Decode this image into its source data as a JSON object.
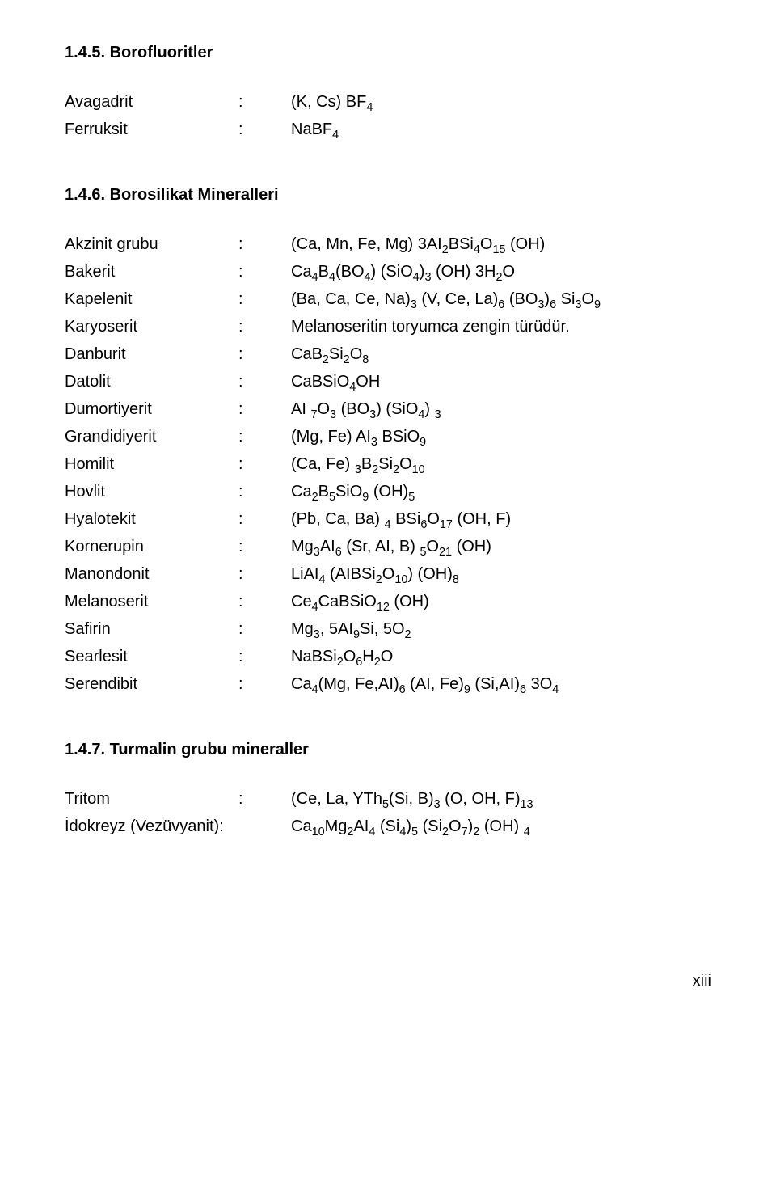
{
  "sections": [
    {
      "heading": "1.4.5. Borofluoritler",
      "rows": [
        {
          "name": "Avagadrit",
          "formula": "(K, Cs) BF<sub>4</sub>"
        },
        {
          "name": "Ferruksit",
          "formula": "NaBF<sub>4</sub>"
        }
      ]
    },
    {
      "heading": "1.4.6. Borosilikat Mineralleri",
      "rows": [
        {
          "name": "Akzinit grubu",
          "formula": "(Ca, Mn, Fe, Mg) 3AI<sub>2</sub>BSi<sub>4</sub>O<sub>15</sub> (OH)"
        },
        {
          "name": "Bakerit",
          "formula": "Ca<sub>4</sub>B<sub>4</sub>(BO<sub>4</sub>) (SiO<sub>4</sub>)<sub>3</sub> (OH) 3H<sub>2</sub>O"
        },
        {
          "name": "Kapelenit",
          "formula": "(Ba, Ca, Ce, Na)<sub>3</sub> (V, Ce, La)<sub>6</sub> (BO<sub>3</sub>)<sub>6</sub> Si<sub>3</sub>O<sub>9</sub>"
        },
        {
          "name": "Karyoserit",
          "formula": "Melanoseritin toryumca zengin türüdür."
        },
        {
          "name": "Danburit",
          "formula": "CaB<sub>2</sub>Si<sub>2</sub>O<sub>8</sub>"
        },
        {
          "name": "Datolit",
          "formula": "CaBSiO<sub>4</sub>OH"
        },
        {
          "name": "Dumortiyerit",
          "formula": "AI <sub>7</sub>O<sub>3</sub> (BO<sub>3</sub>) (SiO<sub>4</sub>) <sub>3</sub>"
        },
        {
          "name": "Grandidiyerit",
          "formula": "(Mg, Fe) AI<sub>3</sub> BSiO<sub>9</sub>"
        },
        {
          "name": "Homilit",
          "formula": "(Ca, Fe) <sub>3</sub>B<sub>2</sub>Si<sub>2</sub>O<sub>10</sub>"
        },
        {
          "name": "Hovlit",
          "formula": "Ca<sub>2</sub>B<sub>5</sub>SiO<sub>9</sub> (OH)<sub>5</sub>"
        },
        {
          "name": "Hyalotekit",
          "formula": "(Pb, Ca, Ba) <sub>4</sub> BSi<sub>6</sub>O<sub>17</sub> (OH, F)"
        },
        {
          "name": "Kornerupin",
          "formula": "Mg<sub>3</sub>AI<sub>6</sub> (Sr, AI, B) <sub>5</sub>O<sub>21</sub> (OH)"
        },
        {
          "name": "Manondonit",
          "formula": "LiAI<sub>4</sub> (AIBSi<sub>2</sub>O<sub>10</sub>) (OH)<sub>8</sub>"
        },
        {
          "name": "Melanoserit",
          "formula": "Ce<sub>4</sub>CaBSiO<sub>12</sub> (OH)"
        },
        {
          "name": "Safirin",
          "formula": "Mg<sub>3</sub>, 5AI<sub>9</sub>Si, 5O<sub>2</sub>"
        },
        {
          "name": "Searlesit",
          "formula": "NaBSi<sub>2</sub>O<sub>6</sub>H<sub>2</sub>O"
        },
        {
          "name": "Serendibit",
          "formula": "Ca<sub>4</sub>(Mg, Fe,AI)<sub>6</sub> (AI, Fe)<sub>9</sub> (Si,AI)<sub>6</sub> 3O<sub>4</sub>"
        }
      ]
    },
    {
      "heading": "1.4.7. Turmalin grubu mineraller",
      "rows": [
        {
          "name": "Tritom",
          "formula": "(Ce, La, YTh<sub>5</sub>(Si, B)<sub>3</sub> (O, OH, F)<sub>13</sub>"
        },
        {
          "name": "İdokreyz (Vezüvyanit)",
          "nocolon": true,
          "formula": "Ca<sub>10</sub>Mg<sub>2</sub>AI<sub>4</sub> (Si<sub>4</sub>)<sub>5</sub> (Si<sub>2</sub>O<sub>7</sub>)<sub>2</sub> (OH) <sub>4</sub>"
        }
      ]
    }
  ],
  "page_number": "xiii",
  "colon": ":"
}
